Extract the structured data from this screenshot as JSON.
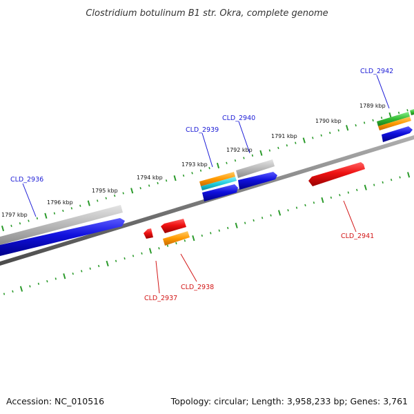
{
  "title": "Clostridium botulinum B1 str. Okra, complete genome",
  "footer": {
    "accession": "Accession: NC_010516",
    "topology": "Topology: circular; Length: 3,958,233 bp; Genes: 3,761"
  },
  "colors": {
    "backbone": "#7a7a7a",
    "tick": "#2a9a2a",
    "forward_cds": "#1010dd",
    "reverse_cds": "#ee1111",
    "rna": "#aaaaaa",
    "orange_feature": "#ff9900",
    "cyan_feature": "#22ccdd",
    "green_feature": "#33bb33",
    "forward_label": "#1a1ad6",
    "reverse_label": "#d21414"
  },
  "kbp_labels": [
    "1797 kbp",
    "1796 kbp",
    "1795 kbp",
    "1794 kbp",
    "1793 kbp",
    "1792 kbp",
    "1791 kbp",
    "1790 kbp",
    "1789 kbp"
  ],
  "gene_labels": {
    "forward": [
      "CLD_2936",
      "CLD_2939",
      "CLD_2940",
      "CLD_2942"
    ],
    "reverse": [
      "CLD_2937",
      "CLD_2938",
      "CLD_2941"
    ]
  }
}
